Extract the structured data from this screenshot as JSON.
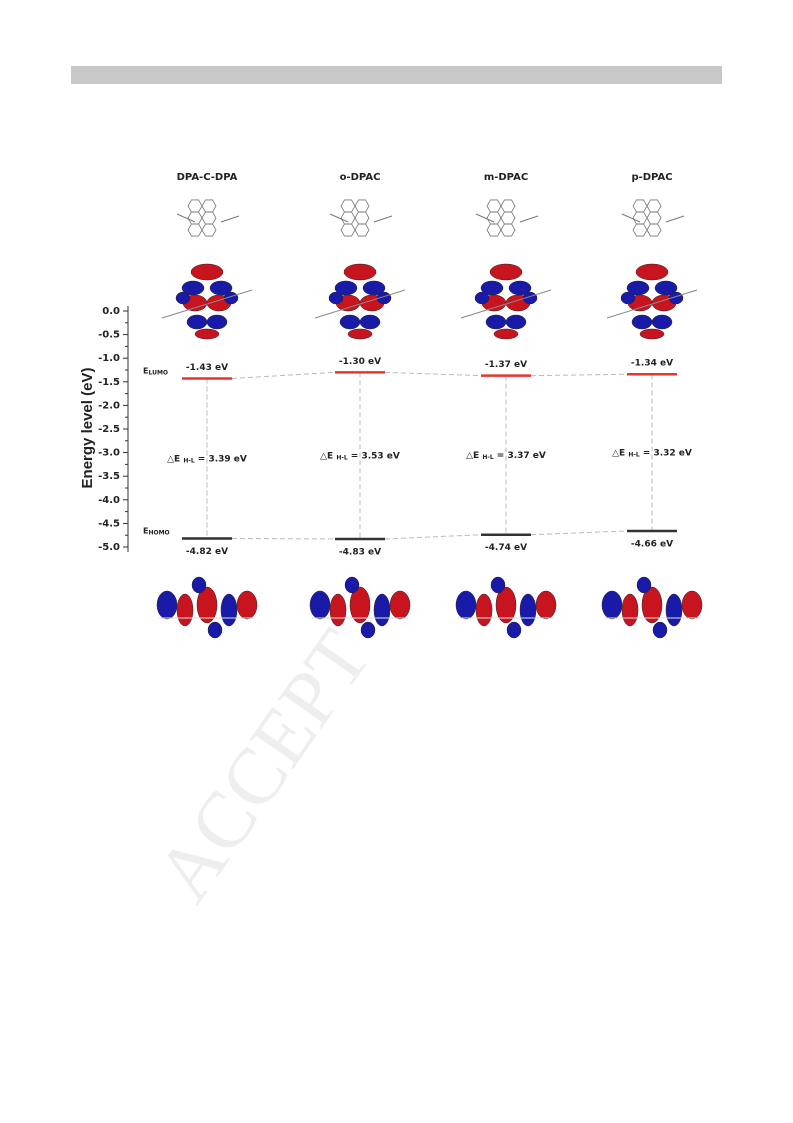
{
  "chart_data": {
    "type": "energy-level",
    "y_label": "Energy level (eV)",
    "categories": [
      "DPA-C-DPA",
      "o-DPAC",
      "m-DPAC",
      "p-DPAC"
    ],
    "level_symbol": "E",
    "series": [
      {
        "name": "LUMO",
        "color": "#e8352f",
        "values": [
          -1.43,
          -1.3,
          -1.37,
          -1.34
        ],
        "value_labels": [
          "-1.43 eV",
          "-1.30 eV",
          "-1.37 eV",
          "-1.34 eV"
        ]
      },
      {
        "name": "HOMO",
        "color": "#333333",
        "values": [
          -4.82,
          -4.83,
          -4.74,
          -4.66
        ],
        "value_labels": [
          "-4.82 eV",
          "-4.83 eV",
          "-4.74 eV",
          "-4.66 eV"
        ]
      }
    ],
    "gap_symbol": "△E",
    "gap_subscript": "H-L",
    "gap": {
      "values": [
        3.39,
        3.53,
        3.37,
        3.32
      ],
      "value_labels": [
        "= 3.39 eV",
        "= 3.53 eV",
        "= 3.37 eV",
        "= 3.32 eV"
      ]
    },
    "ylim": [
      0,
      -5
    ],
    "yticks": [
      {
        "value": 0,
        "label": "0.0"
      },
      -0.5,
      {
        "value": -1,
        "label": "-1.0"
      },
      -1.5,
      {
        "value": -2,
        "label": "-2.0"
      },
      -2.5,
      {
        "value": -3,
        "label": "-3.0"
      },
      -3.5,
      {
        "value": -4,
        "label": "-4.0"
      },
      -4.5,
      {
        "value": -5,
        "label": "-5.0"
      }
    ],
    "watermark": "ACCEPT"
  }
}
